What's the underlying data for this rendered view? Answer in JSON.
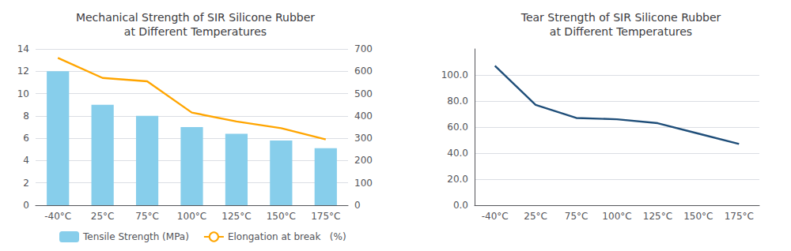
{
  "chart_data": [
    {
      "type": "bar",
      "title": "Mechanical Strength of SIR Silicone Rubber\nat Different Temperatures",
      "categories": [
        "-40°C",
        "25°C",
        "75°C",
        "100°C",
        "125°C",
        "150°C",
        "175°C"
      ],
      "series": [
        {
          "name": "Tensile Strength (MPa)",
          "type": "bar",
          "color": "#87CEEB",
          "values": [
            12.0,
            9.0,
            8.0,
            7.0,
            6.4,
            5.8,
            5.1
          ]
        },
        {
          "name": "Elongation at break   (%)",
          "type": "line",
          "color": "#FFA500",
          "axis": "y2",
          "values": [
            660,
            570,
            555,
            415,
            375,
            345,
            295
          ]
        }
      ],
      "ylim": [
        0,
        14
      ],
      "yticks": [
        0,
        2,
        4,
        6,
        8,
        10,
        12,
        14
      ],
      "y2lim": [
        0,
        700
      ],
      "y2ticks": [
        0,
        100,
        200,
        300,
        400,
        500,
        600,
        700
      ],
      "grid": true,
      "legend": "bottom"
    },
    {
      "type": "line",
      "title": "Tear Strength of SIR Silicone Rubber\nat Different Temperatures",
      "categories": [
        "-40°C",
        "25°C",
        "75°C",
        "100°C",
        "125°C",
        "150°C",
        "175°C"
      ],
      "values": [
        107,
        77,
        67,
        66,
        63,
        55,
        47
      ],
      "color": "#1F4E79",
      "ylim": [
        0.0,
        120.0
      ],
      "yticks": [
        {
          "value": 0,
          "label": "0.0"
        },
        {
          "value": 20,
          "label": "20.0"
        },
        {
          "value": 40,
          "label": "40.0"
        },
        {
          "value": 60,
          "label": "60.0"
        },
        {
          "value": 80,
          "label": "80.0"
        },
        {
          "value": 100,
          "label": "100.0"
        }
      ],
      "grid": true
    }
  ]
}
